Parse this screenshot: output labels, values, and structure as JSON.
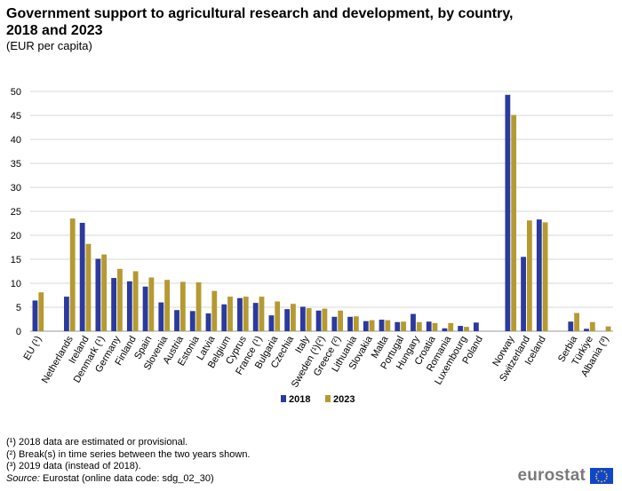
{
  "header": {
    "title": "Government support to agricultural research and development, by country, 2018 and 2023",
    "subtitle": "(EUR per capita)"
  },
  "chart_data": {
    "type": "bar",
    "categories": [
      "EU (¹)",
      "",
      "Netherlands",
      "Ireland",
      "Denmark (¹)",
      "Germany",
      "Finland",
      "Spain",
      "Slovenia",
      "Austria",
      "Estonia",
      "Latvia",
      "Belgium",
      "Cyprus",
      "France (¹)",
      "Bulgaria",
      "Czechia",
      "Italy",
      "Sweden (¹)(²)",
      "Greece (²)",
      "Lithuania",
      "Slovakia",
      "Malta",
      "Portugal",
      "Hungary",
      "Croatia",
      "Romania",
      "Luxembourg",
      "Poland",
      "",
      "Norway",
      "Switzerland",
      "Iceland",
      "",
      "Serbia",
      "Türkiye",
      "Albania (³)"
    ],
    "series": [
      {
        "name": "2018",
        "color": "#2b3a9c",
        "values": [
          6.4,
          null,
          7.2,
          22.6,
          15.1,
          11.1,
          10.4,
          9.3,
          6.0,
          4.4,
          4.2,
          3.7,
          5.6,
          6.9,
          5.9,
          3.3,
          4.6,
          5.1,
          4.3,
          3.0,
          3.0,
          2.1,
          2.4,
          1.9,
          3.6,
          2.0,
          0.6,
          1.1,
          1.8,
          null,
          49.3,
          15.5,
          23.3,
          null,
          2.0,
          0.5,
          null
        ]
      },
      {
        "name": "2023",
        "color": "#b59a32",
        "values": [
          8.1,
          null,
          23.5,
          18.2,
          16.0,
          13.0,
          12.5,
          11.2,
          10.7,
          10.3,
          10.2,
          8.4,
          7.2,
          7.2,
          7.2,
          6.2,
          5.7,
          4.8,
          4.7,
          4.3,
          3.1,
          2.3,
          2.3,
          2.0,
          1.9,
          1.7,
          1.7,
          0.9,
          null,
          null,
          45.1,
          23.1,
          22.7,
          null,
          3.8,
          1.9,
          1.0
        ]
      }
    ],
    "yticks": [
      "0",
      "5",
      "10",
      "15",
      "20",
      "25",
      "30",
      "35",
      "40",
      "45",
      "50"
    ],
    "ylim": [
      0,
      50
    ],
    "grid": true,
    "legend_position": "bottom"
  },
  "footnotes": [
    "(¹) 2018 data are estimated or provisional.",
    "(²) Break(s) in time series between the two years shown.",
    "(³) 2019 data (instead of 2018)."
  ],
  "source": {
    "label": "Source:",
    "text": "Eurostat (online data code: sdg_02_30)"
  },
  "logo": {
    "text": "eurostat"
  }
}
